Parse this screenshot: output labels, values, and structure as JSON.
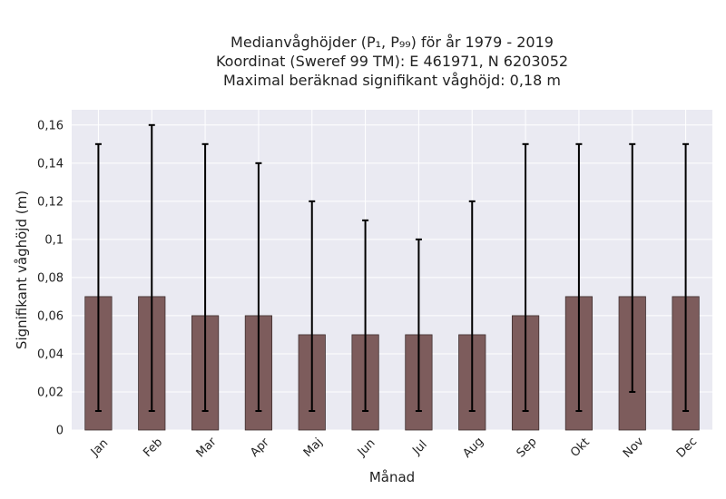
{
  "chart_data": {
    "type": "bar",
    "title_lines": [
      "Medianvåghöjder (P₁, P₉₉) för år 1979 - 2019",
      "Koordinat (Sweref 99 TM): E 461971, N 6203052",
      "Maximal beräknad signifikant våghöjd: 0,18 m"
    ],
    "xlabel": "Månad",
    "ylabel": "Signifikant våghöjd (m)",
    "categories": [
      "Jan",
      "Feb",
      "Mar",
      "Apr",
      "Maj",
      "Jun",
      "Jul",
      "Aug",
      "Sep",
      "Okt",
      "Nov",
      "Dec"
    ],
    "values": [
      0.07,
      0.07,
      0.06,
      0.06,
      0.05,
      0.05,
      0.05,
      0.05,
      0.06,
      0.07,
      0.07,
      0.07
    ],
    "p1": [
      0.01,
      0.01,
      0.01,
      0.01,
      0.01,
      0.01,
      0.01,
      0.01,
      0.01,
      0.01,
      0.02,
      0.01
    ],
    "p99": [
      0.15,
      0.16,
      0.15,
      0.14,
      0.12,
      0.11,
      0.1,
      0.12,
      0.15,
      0.15,
      0.15,
      0.15
    ],
    "ylim": [
      0,
      0.168
    ],
    "yticks": [
      0,
      0.02,
      0.04,
      0.06,
      0.08,
      0.1,
      0.12,
      0.14,
      0.16
    ],
    "ytick_labels": [
      "0",
      "0,02",
      "0,04",
      "0,06",
      "0,08",
      "0,1",
      "0,12",
      "0,14",
      "0,16"
    ],
    "grid": true,
    "colors": {
      "bar": "#7d5c5c",
      "bar_edge": "#3f2f2f",
      "errorbar": "#000000",
      "plot_bg": "#eaeaf2",
      "grid": "#ffffff"
    }
  }
}
